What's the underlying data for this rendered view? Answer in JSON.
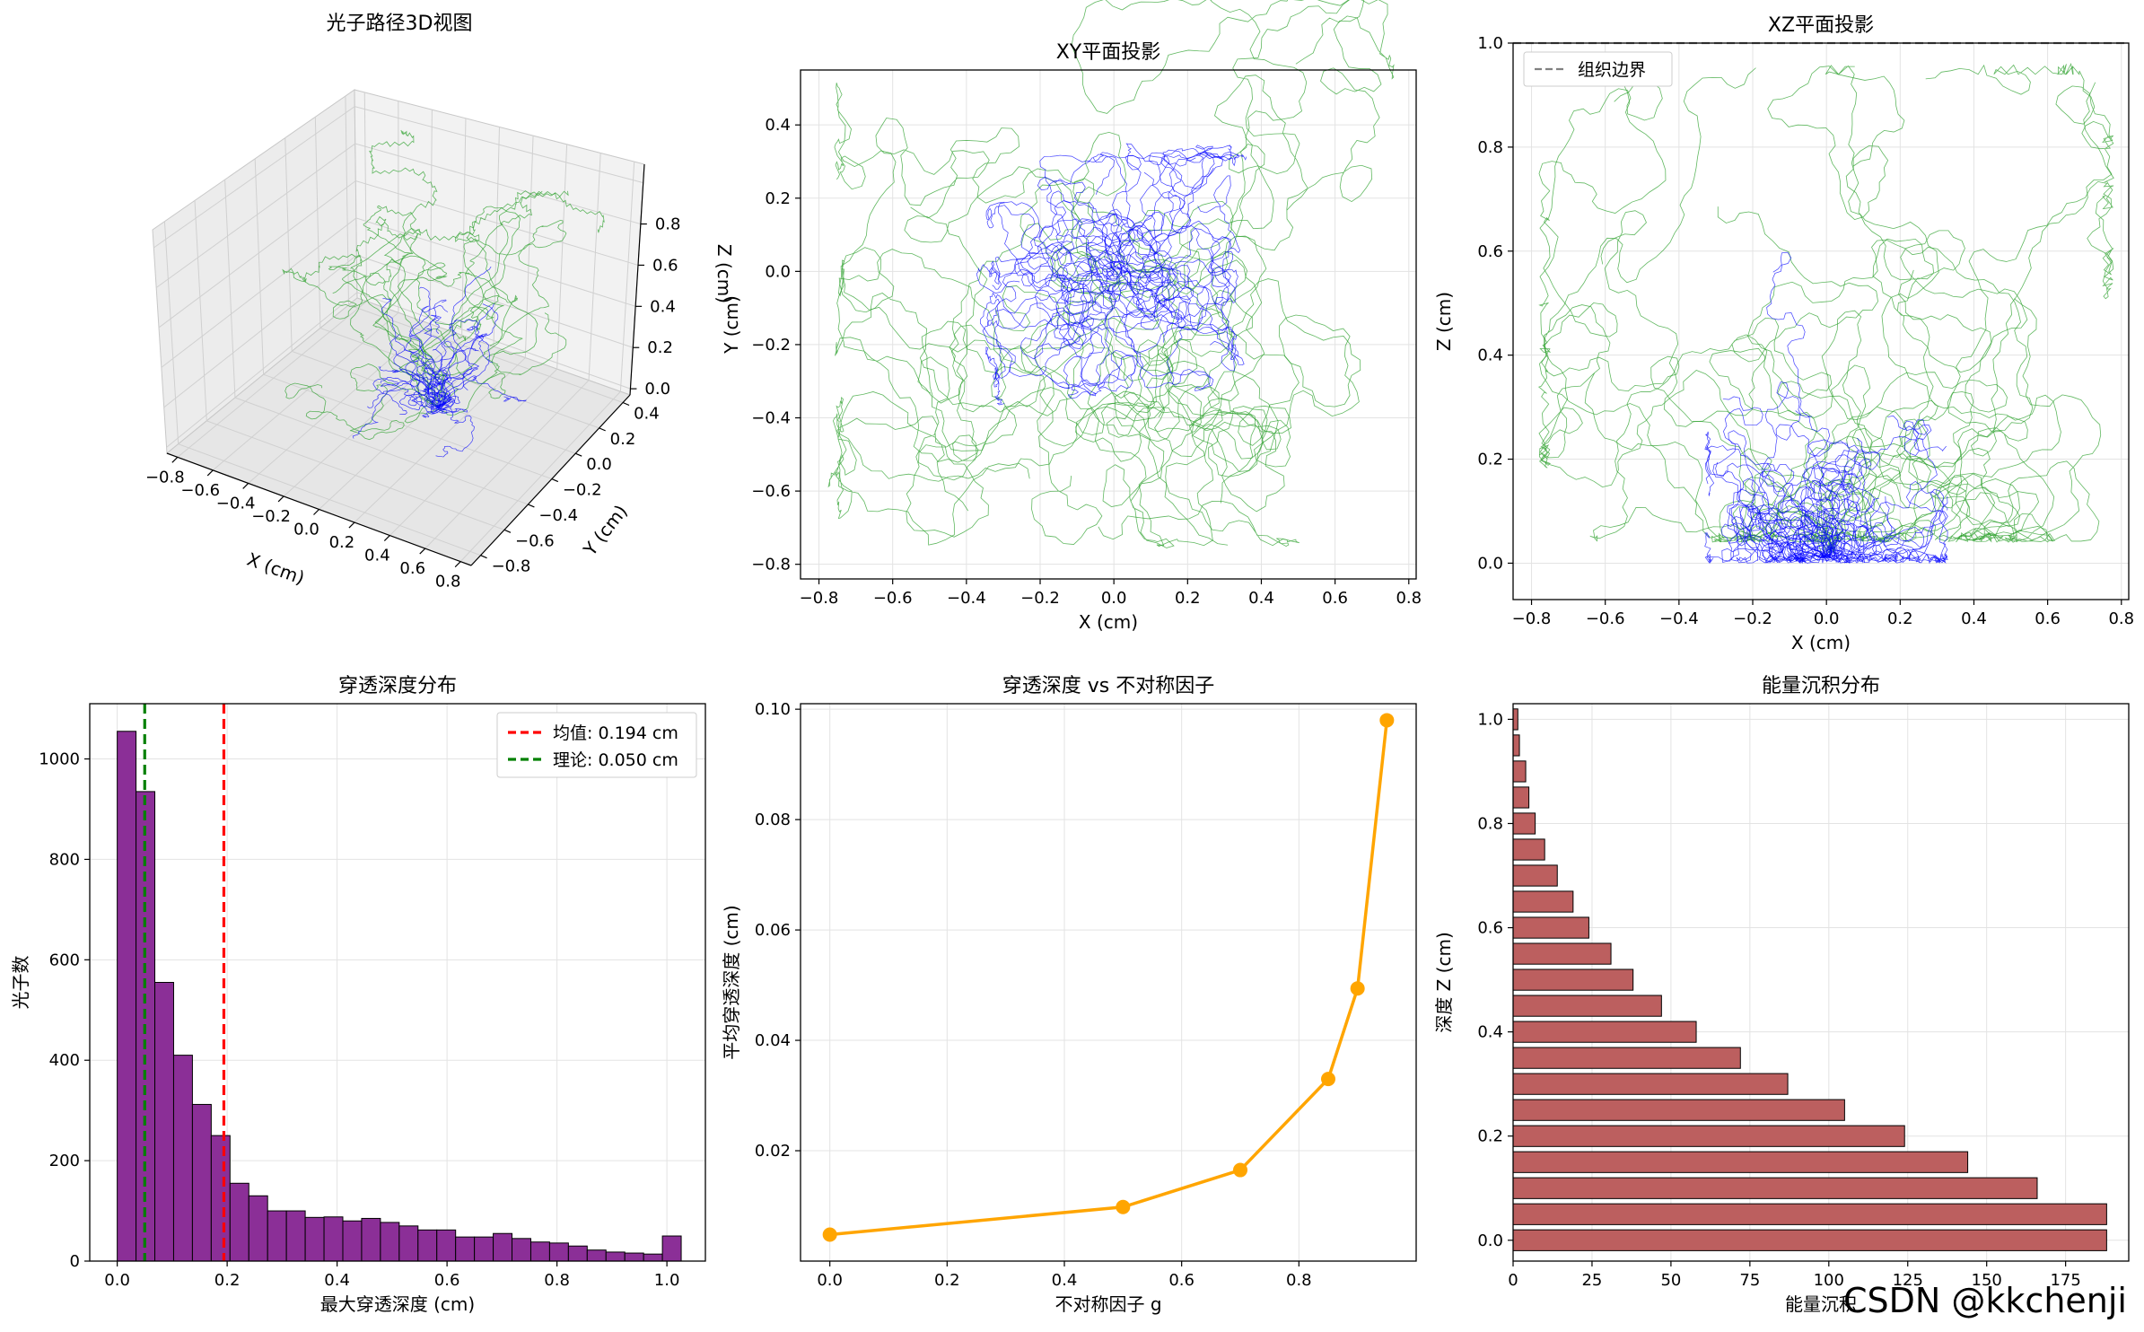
{
  "chart_data": [
    {
      "type": "line",
      "subtype": "3d-paths",
      "title": "光子路径3D视图",
      "xlabel": "X (cm)",
      "ylabel": "Y (cm)",
      "zlabel": "Z (cm)",
      "xticks": [
        "−0.8",
        "−0.6",
        "−0.4",
        "−0.2",
        "0.0",
        "0.2",
        "0.4",
        "0.6",
        "0.8"
      ],
      "yticks": [
        "−0.8",
        "−0.6",
        "−0.4",
        "−0.2",
        "0.0",
        "0.2",
        "0.4"
      ],
      "zticks": [
        "0.0",
        "0.2",
        "0.4",
        "0.6",
        "0.8"
      ],
      "xlim": [
        -0.85,
        0.85
      ],
      "ylim": [
        -0.85,
        0.5
      ],
      "zlim": [
        0,
        1.0
      ],
      "series": [
        {
          "color": "#0000ff"
        },
        {
          "color": "#2ca02c"
        }
      ]
    },
    {
      "type": "line",
      "subtype": "path-projection",
      "title": "XY平面投影",
      "xlabel": "X (cm)",
      "ylabel": "Y (cm)",
      "xlim": [
        -0.85,
        0.82
      ],
      "ylim": [
        -0.84,
        0.55
      ],
      "xticks": [
        -0.8,
        -0.6,
        -0.4,
        -0.2,
        0.0,
        0.2,
        0.4,
        0.6,
        0.8
      ],
      "yticks": [
        -0.8,
        -0.6,
        -0.4,
        -0.2,
        0.0,
        0.2,
        0.4
      ],
      "xtick_labels": [
        "−0.8",
        "−0.6",
        "−0.4",
        "−0.2",
        "0.0",
        "0.2",
        "0.4",
        "0.6",
        "0.8"
      ],
      "ytick_labels": [
        "−0.8",
        "−0.6",
        "−0.4",
        "−0.2",
        "0.0",
        "0.2",
        "0.4"
      ],
      "grid": true,
      "series": [
        {
          "color": "#0000ff"
        },
        {
          "color": "#2ca02c"
        }
      ]
    },
    {
      "type": "line",
      "subtype": "path-projection",
      "title": "XZ平面投影",
      "xlabel": "X (cm)",
      "ylabel": "Z (cm)",
      "xlim": [
        -0.85,
        0.82
      ],
      "ylim": [
        -0.07,
        1.0
      ],
      "xticks": [
        -0.8,
        -0.6,
        -0.4,
        -0.2,
        0.0,
        0.2,
        0.4,
        0.6,
        0.8
      ],
      "yticks": [
        0.0,
        0.2,
        0.4,
        0.6,
        0.8,
        1.0
      ],
      "xtick_labels": [
        "−0.8",
        "−0.6",
        "−0.4",
        "−0.2",
        "0.0",
        "0.2",
        "0.4",
        "0.6",
        "0.8"
      ],
      "ytick_labels": [
        "0.0",
        "0.2",
        "0.4",
        "0.6",
        "0.8",
        "1.0"
      ],
      "grid": true,
      "hline": {
        "y": 1.0,
        "label": "组织边界",
        "color": "#808080",
        "dashed": true
      },
      "legend": "top-left",
      "series": [
        {
          "color": "#0000ff"
        },
        {
          "color": "#2ca02c"
        }
      ]
    },
    {
      "type": "bar",
      "subtype": "histogram",
      "title": "穿透深度分布",
      "xlabel": "最大穿透深度 (cm)",
      "ylabel": "光子数",
      "xlim": [
        -0.05,
        1.07
      ],
      "ylim": [
        0,
        1110
      ],
      "xticks": [
        0.0,
        0.2,
        0.4,
        0.6,
        0.8,
        1.0
      ],
      "yticks": [
        0,
        200,
        400,
        600,
        800,
        1000
      ],
      "xtick_labels": [
        "0.0",
        "0.2",
        "0.4",
        "0.6",
        "0.8",
        "1.0"
      ],
      "ytick_labels": [
        "0",
        "200",
        "400",
        "600",
        "800",
        "1000"
      ],
      "bin_start": 0.0,
      "bin_width": 0.0342,
      "values": [
        1055,
        935,
        555,
        410,
        312,
        250,
        155,
        130,
        100,
        100,
        87,
        88,
        80,
        85,
        77,
        70,
        62,
        62,
        48,
        48,
        55,
        45,
        38,
        36,
        30,
        22,
        18,
        16,
        14,
        50
      ],
      "bar_color": "#8b2f97",
      "vlines": [
        {
          "x": 0.194,
          "color": "#ff0000",
          "label": "均值: 0.194 cm"
        },
        {
          "x": 0.05,
          "color": "#008000",
          "label": "理论: 0.050 cm"
        }
      ],
      "legend": "top-right",
      "grid": true
    },
    {
      "type": "line",
      "title": "穿透深度 vs 不对称因子",
      "xlabel": "不对称因子 g",
      "ylabel": "平均穿透深度 (cm)",
      "xlim": [
        -0.05,
        1.0
      ],
      "ylim": [
        0.0,
        0.101
      ],
      "xticks": [
        0.0,
        0.2,
        0.4,
        0.6,
        0.8
      ],
      "yticks": [
        0.02,
        0.04,
        0.06,
        0.08,
        0.1
      ],
      "xtick_labels": [
        "0.0",
        "0.2",
        "0.4",
        "0.6",
        "0.8"
      ],
      "ytick_labels": [
        "0.02",
        "0.04",
        "0.06",
        "0.08",
        "0.10"
      ],
      "x": [
        0.0,
        0.5,
        0.7,
        0.85,
        0.9,
        0.95
      ],
      "y": [
        0.0048,
        0.0098,
        0.0165,
        0.033,
        0.0494,
        0.098
      ],
      "color": "#ffa500",
      "grid": true
    },
    {
      "type": "bar",
      "subtype": "horizontal",
      "title": "能量沉积分布",
      "xlabel": "能量沉积",
      "ylabel": "深度 Z (cm)",
      "xlim": [
        0,
        195
      ],
      "ylim": [
        -0.04,
        1.03
      ],
      "xticks": [
        0,
        25,
        50,
        75,
        100,
        125,
        150,
        175
      ],
      "yticks": [
        0.0,
        0.2,
        0.4,
        0.6,
        0.8,
        1.0
      ],
      "xtick_labels": [
        "0",
        "25",
        "50",
        "75",
        "100",
        "125",
        "150",
        "175"
      ],
      "ytick_labels": [
        "0.0",
        "0.2",
        "0.4",
        "0.6",
        "0.8",
        "1.0"
      ],
      "depth_start": 0.0,
      "depth_step": 0.05,
      "values": [
        188,
        188,
        166,
        144,
        124,
        105,
        87,
        72,
        58,
        47,
        38,
        31,
        24,
        19,
        14,
        10,
        7,
        5,
        4,
        2,
        1.5
      ],
      "bar_color": "#bc5f5f",
      "grid": true
    }
  ],
  "watermark": "CSDN @kkchenji"
}
